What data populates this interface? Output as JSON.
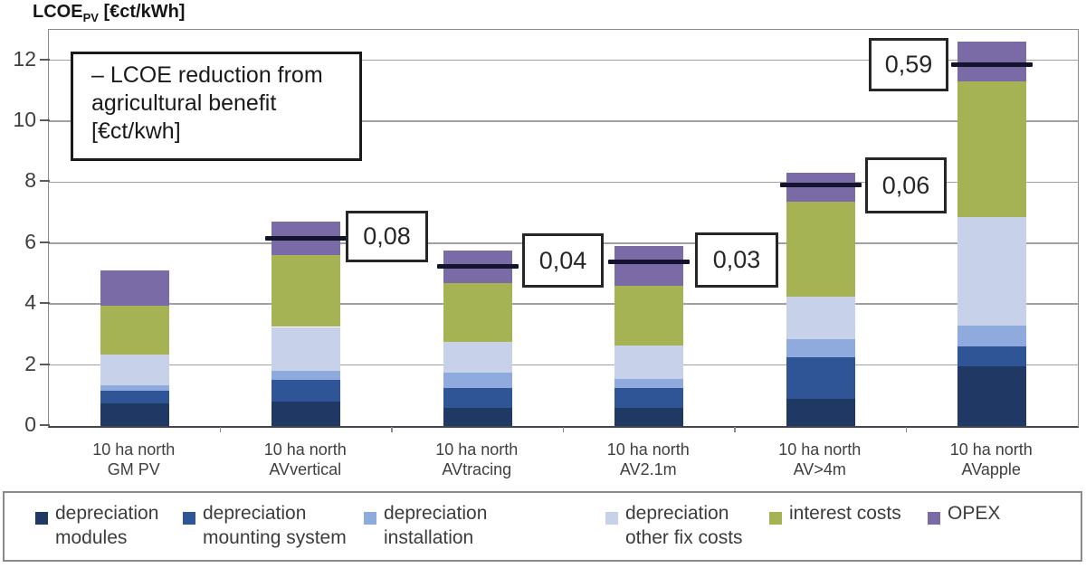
{
  "title": {
    "main": "LCOE",
    "sub": "PV",
    "units": " [€ct/kWh]"
  },
  "annotation": {
    "line1": "– LCOE reduction from",
    "line2": "agricultural benefit",
    "line3": "[€ct/kwh]"
  },
  "chart_data": {
    "type": "bar",
    "stacked": true,
    "title": "LCOE_PV [€ct/kWh]",
    "xlabel": "",
    "ylabel": "LCOE_PV [€ct/kWh]",
    "ylim": [
      0,
      13
    ],
    "yticks": [
      0,
      2,
      4,
      6,
      8,
      10,
      12
    ],
    "grid": "horizontal",
    "legend_position": "bottom",
    "categories": [
      [
        "10 ha north",
        "GM PV"
      ],
      [
        "10 ha north",
        "AVvertical"
      ],
      [
        "10 ha north",
        "AVtracing"
      ],
      [
        "10 ha north",
        "AV2.1m"
      ],
      [
        "10 ha north",
        "AV>4m"
      ],
      [
        "10 ha north",
        "AVapple"
      ]
    ],
    "series": [
      {
        "name": "depreciation modules",
        "legend_lines": [
          "depreciation",
          "modules"
        ],
        "color": "#1F3864",
        "values": [
          0.75,
          0.8,
          0.6,
          0.6,
          0.9,
          1.95
        ]
      },
      {
        "name": "depreciation mounting system",
        "legend_lines": [
          "depreciation",
          "mounting system"
        ],
        "color": "#2F5597",
        "values": [
          0.4,
          0.7,
          0.65,
          0.65,
          1.35,
          0.65
        ]
      },
      {
        "name": "depreciation installation",
        "legend_lines": [
          "depreciation",
          "installation"
        ],
        "color": "#8FAADC",
        "values": [
          0.2,
          0.3,
          0.5,
          0.3,
          0.6,
          0.7
        ]
      },
      {
        "name": "depreciation other fix costs",
        "legend_lines": [
          "depreciation",
          "other fix costs"
        ],
        "color": "#C7D1EA",
        "values": [
          1.0,
          1.45,
          1.0,
          1.1,
          1.4,
          3.55
        ]
      },
      {
        "name": "interest costs",
        "legend_lines": [
          "interest costs"
        ],
        "color": "#A6B354",
        "values": [
          1.6,
          2.35,
          1.95,
          1.95,
          3.1,
          4.45
        ]
      },
      {
        "name": "OPEX",
        "legend_lines": [
          "OPEX"
        ],
        "color": "#7A6BA6",
        "values": [
          1.15,
          1.1,
          1.05,
          1.3,
          0.95,
          1.3
        ]
      }
    ],
    "totals": [
      5.1,
      6.7,
      5.75,
      5.9,
      8.3,
      12.6
    ],
    "reduction_markers": [
      {
        "category_index": 1,
        "category": "AVvertical",
        "label": "0,08",
        "line_value": 6.15
      },
      {
        "category_index": 2,
        "category": "AVtracing",
        "label": "0,04",
        "line_value": 5.25
      },
      {
        "category_index": 3,
        "category": "AV2.1m",
        "label": "0,03",
        "line_value": 5.4
      },
      {
        "category_index": 4,
        "category": "AV>4m",
        "label": "0,06",
        "line_value": 7.9
      },
      {
        "category_index": 5,
        "category": "AVapple",
        "label": "0,59",
        "line_value": 11.85
      }
    ],
    "marker_line_color": "#15142F"
  }
}
